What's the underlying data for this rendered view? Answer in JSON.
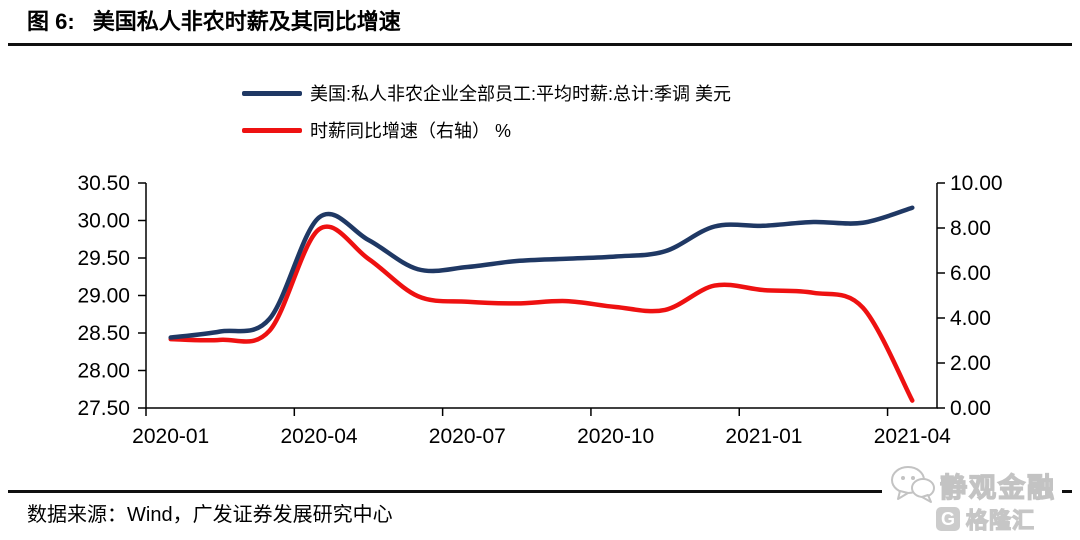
{
  "figure": {
    "title_prefix": "图 6:",
    "title": "美国私人非农时薪及其同比增速"
  },
  "legend": [
    {
      "label": "美国:私人非农企业全部员工:平均时薪:总计:季调 美元",
      "color": "#1f3864"
    },
    {
      "label": "时薪同比增速（右轴） %",
      "color": "#ee1111"
    }
  ],
  "source": {
    "text": "数据来源：Wind，广发证券发展研究中心"
  },
  "watermark": {
    "name": "静观金融",
    "logo_g": "G",
    "logo": "格隆汇"
  },
  "colors": {
    "wage_line": "#1f3864",
    "yoy_line": "#ee1111",
    "axis": "#000000"
  },
  "chart_data": {
    "type": "line",
    "title": "美国私人非农时薪及其同比增速",
    "x": [
      "2020-01",
      "2020-02",
      "2020-03",
      "2020-04",
      "2020-05",
      "2020-06",
      "2020-07",
      "2020-08",
      "2020-09",
      "2020-10",
      "2020-11",
      "2020-12",
      "2021-01",
      "2021-02",
      "2021-03",
      "2021-04"
    ],
    "x_tick_labels": [
      "2020-01",
      "2020-04",
      "2020-07",
      "2020-10",
      "2021-01",
      "2021-04"
    ],
    "series": [
      {
        "name": "美国:私人非农企业全部员工:平均时薪:总计:季调 美元",
        "axis": "left",
        "color": "#1f3864",
        "values": [
          28.44,
          28.52,
          28.69,
          30.04,
          29.74,
          29.35,
          29.38,
          29.46,
          29.49,
          29.52,
          29.59,
          29.92,
          29.93,
          29.98,
          29.97,
          30.17
        ]
      },
      {
        "name": "时薪同比增速（右轴） %",
        "axis": "right",
        "color": "#ee1111",
        "values": [
          3.06,
          3.03,
          3.44,
          7.94,
          6.63,
          4.97,
          4.72,
          4.65,
          4.75,
          4.49,
          4.36,
          5.44,
          5.24,
          5.12,
          4.46,
          0.33
        ]
      }
    ],
    "left_axis": {
      "min": 27.5,
      "max": 30.5,
      "tick_labels": [
        "30.50",
        "30.00",
        "29.50",
        "29.00",
        "28.50",
        "28.00",
        "27.50"
      ]
    },
    "right_axis": {
      "min": 0,
      "max": 10,
      "tick_labels": [
        "10.00",
        "8.00",
        "6.00",
        "4.00",
        "2.00",
        "0.00"
      ]
    },
    "grid": false,
    "smooth": true,
    "legend_position": "top-left"
  }
}
